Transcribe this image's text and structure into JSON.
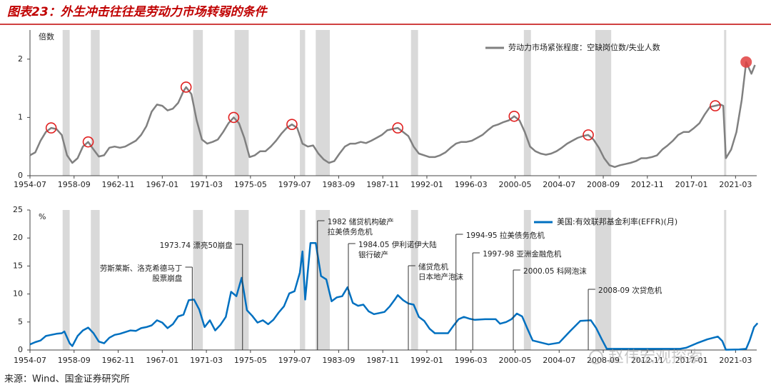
{
  "header": {
    "title": "图表23：外生冲击往往是劳动力市场转弱的条件"
  },
  "source": "来源：Wind、国金证券研究所",
  "watermark": "赵伟宏观探索",
  "recessions": [
    [
      "1957-08",
      "1958-04"
    ],
    [
      "1960-04",
      "1961-02"
    ],
    [
      "1969-12",
      "1970-11"
    ],
    [
      "1973-11",
      "1975-03"
    ],
    [
      "1980-01",
      "1980-07"
    ],
    [
      "1981-07",
      "1982-11"
    ],
    [
      "1990-07",
      "1991-03"
    ],
    [
      "2001-03",
      "2001-11"
    ],
    [
      "2007-12",
      "2009-06"
    ],
    [
      "2020-02",
      "2020-04"
    ]
  ],
  "chart_data": [
    {
      "type": "line",
      "y_label": "倍数",
      "xlim": [
        "1954-07",
        "2023-03"
      ],
      "xticks": [
        "1954-07",
        "1958-09",
        "1962-11",
        "1967-01",
        "1971-03",
        "1975-05",
        "1979-07",
        "1983-09",
        "1987-11",
        "1992-01",
        "1996-03",
        "2000-05",
        "2004-07",
        "2008-09",
        "2012-11",
        "2017-01",
        "2021-03"
      ],
      "ylim": [
        0,
        2.5
      ],
      "yticks": [
        0,
        1,
        2
      ],
      "grid": false,
      "legend": "top-right",
      "series": [
        {
          "name": "劳动力市场紧张程度：空缺岗位数/失业人数",
          "color": "#808080",
          "x": [
            "1954-07",
            "1955-01",
            "1955-07",
            "1956-01",
            "1956-07",
            "1957-01",
            "1957-07",
            "1958-01",
            "1958-07",
            "1959-01",
            "1959-07",
            "1960-01",
            "1960-07",
            "1961-01",
            "1961-07",
            "1962-01",
            "1962-07",
            "1963-01",
            "1963-07",
            "1964-01",
            "1964-07",
            "1965-01",
            "1965-07",
            "1966-01",
            "1966-07",
            "1967-01",
            "1967-07",
            "1968-01",
            "1968-07",
            "1969-01",
            "1969-04",
            "1969-10",
            "1970-04",
            "1970-10",
            "1971-04",
            "1971-10",
            "1972-04",
            "1972-10",
            "1973-04",
            "1973-10",
            "1974-04",
            "1974-10",
            "1975-04",
            "1975-10",
            "1976-04",
            "1976-10",
            "1977-04",
            "1977-10",
            "1978-04",
            "1978-10",
            "1979-04",
            "1979-10",
            "1980-04",
            "1980-10",
            "1981-04",
            "1981-10",
            "1982-04",
            "1982-10",
            "1983-04",
            "1983-10",
            "1984-04",
            "1984-10",
            "1985-04",
            "1985-10",
            "1986-04",
            "1986-10",
            "1987-04",
            "1987-10",
            "1988-04",
            "1988-10",
            "1989-04",
            "1989-10",
            "1990-04",
            "1990-10",
            "1991-04",
            "1991-10",
            "1992-04",
            "1992-10",
            "1993-04",
            "1993-10",
            "1994-04",
            "1994-10",
            "1995-04",
            "1995-10",
            "1996-04",
            "1996-10",
            "1997-04",
            "1997-10",
            "1998-04",
            "1998-10",
            "1999-04",
            "1999-10",
            "2000-04",
            "2000-10",
            "2001-04",
            "2001-10",
            "2002-04",
            "2002-10",
            "2003-04",
            "2003-10",
            "2004-04",
            "2004-10",
            "2005-04",
            "2005-10",
            "2006-04",
            "2006-10",
            "2007-04",
            "2007-10",
            "2008-04",
            "2008-10",
            "2009-04",
            "2009-10",
            "2010-04",
            "2010-10",
            "2011-04",
            "2011-10",
            "2012-04",
            "2012-10",
            "2013-04",
            "2013-10",
            "2014-04",
            "2014-10",
            "2015-04",
            "2015-10",
            "2016-04",
            "2016-10",
            "2017-04",
            "2017-10",
            "2018-04",
            "2018-10",
            "2019-04",
            "2019-10",
            "2020-01",
            "2020-04",
            "2020-10",
            "2021-04",
            "2021-10",
            "2022-03",
            "2022-09",
            "2023-01"
          ],
          "values": [
            0.35,
            0.4,
            0.6,
            0.75,
            0.82,
            0.8,
            0.7,
            0.35,
            0.22,
            0.3,
            0.5,
            0.58,
            0.45,
            0.33,
            0.35,
            0.48,
            0.5,
            0.48,
            0.5,
            0.55,
            0.6,
            0.7,
            0.85,
            1.1,
            1.22,
            1.2,
            1.12,
            1.15,
            1.25,
            1.45,
            1.52,
            1.4,
            0.95,
            0.62,
            0.55,
            0.58,
            0.62,
            0.75,
            0.9,
            1.0,
            0.9,
            0.65,
            0.32,
            0.35,
            0.42,
            0.42,
            0.5,
            0.6,
            0.72,
            0.82,
            0.88,
            0.82,
            0.55,
            0.5,
            0.52,
            0.38,
            0.28,
            0.22,
            0.25,
            0.38,
            0.5,
            0.55,
            0.55,
            0.58,
            0.56,
            0.6,
            0.65,
            0.7,
            0.78,
            0.8,
            0.82,
            0.75,
            0.68,
            0.5,
            0.38,
            0.35,
            0.32,
            0.32,
            0.35,
            0.4,
            0.48,
            0.55,
            0.58,
            0.58,
            0.6,
            0.65,
            0.7,
            0.78,
            0.85,
            0.88,
            0.92,
            0.95,
            1.02,
            0.95,
            0.75,
            0.5,
            0.42,
            0.38,
            0.36,
            0.38,
            0.42,
            0.48,
            0.55,
            0.6,
            0.65,
            0.68,
            0.7,
            0.62,
            0.48,
            0.3,
            0.18,
            0.15,
            0.18,
            0.2,
            0.22,
            0.25,
            0.3,
            0.3,
            0.32,
            0.35,
            0.45,
            0.52,
            0.6,
            0.7,
            0.75,
            0.75,
            0.82,
            0.9,
            1.05,
            1.18,
            1.2,
            1.22,
            1.2,
            0.3,
            0.45,
            0.75,
            1.3,
            1.95,
            1.75,
            1.9
          ]
        }
      ],
      "highlights": {
        "color": "#e02020",
        "x": [
          "1956-07",
          "1960-01",
          "1969-04",
          "1973-10",
          "1979-04",
          "1989-04",
          "2000-04",
          "2007-04",
          "2019-04"
        ],
        "values": [
          0.82,
          0.58,
          1.52,
          1.0,
          0.88,
          0.82,
          1.02,
          0.7,
          1.2
        ]
      },
      "latest": {
        "color": "#e04040",
        "x": "2022-03",
        "value": 1.95
      }
    },
    {
      "type": "line",
      "y_label": "%",
      "xlim": [
        "1954-07",
        "2023-03"
      ],
      "xticks": [
        "1954-07",
        "1958-09",
        "1962-11",
        "1967-01",
        "1971-03",
        "1975-05",
        "1979-07",
        "1983-09",
        "1987-11",
        "1992-01",
        "1996-03",
        "2000-05",
        "2004-07",
        "2008-09",
        "2012-11",
        "2017-01",
        "2021-03"
      ],
      "ylim": [
        0,
        25
      ],
      "yticks": [
        0,
        5,
        10,
        15,
        20,
        25
      ],
      "grid": false,
      "legend": "top-right",
      "series": [
        {
          "name": "美国:有效联邦基金利率(EFFR)(月)",
          "color": "#0070c0",
          "x": [
            "1954-07",
            "1955-01",
            "1955-07",
            "1956-01",
            "1956-07",
            "1957-01",
            "1957-07",
            "1957-10",
            "1958-04",
            "1958-07",
            "1959-01",
            "1959-07",
            "1960-01",
            "1960-07",
            "1961-01",
            "1961-07",
            "1962-01",
            "1962-07",
            "1963-01",
            "1963-07",
            "1964-01",
            "1964-07",
            "1965-01",
            "1965-07",
            "1966-01",
            "1966-07",
            "1967-01",
            "1967-07",
            "1968-01",
            "1968-07",
            "1969-01",
            "1969-07",
            "1970-01",
            "1970-07",
            "1971-01",
            "1971-07",
            "1972-01",
            "1972-07",
            "1973-01",
            "1973-07",
            "1974-01",
            "1974-07",
            "1975-01",
            "1975-07",
            "1976-01",
            "1976-07",
            "1977-01",
            "1977-07",
            "1978-01",
            "1978-07",
            "1979-01",
            "1979-07",
            "1980-01",
            "1980-04",
            "1980-07",
            "1981-01",
            "1981-07",
            "1982-01",
            "1982-07",
            "1983-01",
            "1983-07",
            "1984-01",
            "1984-07",
            "1985-01",
            "1985-07",
            "1986-01",
            "1986-07",
            "1987-01",
            "1987-07",
            "1988-01",
            "1988-07",
            "1989-01",
            "1989-04",
            "1989-10",
            "1990-04",
            "1990-10",
            "1991-04",
            "1991-10",
            "1992-04",
            "1992-10",
            "1993-07",
            "1994-01",
            "1994-07",
            "1995-01",
            "1995-07",
            "1996-01",
            "1996-07",
            "1997-07",
            "1998-07",
            "1998-12",
            "1999-07",
            "2000-01",
            "2000-07",
            "2001-01",
            "2001-07",
            "2002-01",
            "2003-07",
            "2004-07",
            "2005-07",
            "2006-07",
            "2007-07",
            "2008-01",
            "2008-07",
            "2009-01",
            "2010-07",
            "2015-12",
            "2016-07",
            "2017-07",
            "2018-07",
            "2019-07",
            "2019-12",
            "2020-04",
            "2021-07",
            "2022-03",
            "2022-07",
            "2022-12",
            "2023-04"
          ],
          "values": [
            1.0,
            1.4,
            1.7,
            2.5,
            2.7,
            2.9,
            3.0,
            3.3,
            1.2,
            0.7,
            2.5,
            3.5,
            4.0,
            3.0,
            1.5,
            1.2,
            2.2,
            2.7,
            2.9,
            3.2,
            3.5,
            3.4,
            3.9,
            4.1,
            4.4,
            5.3,
            4.9,
            3.9,
            4.6,
            6.0,
            6.3,
            8.9,
            9.0,
            7.2,
            4.1,
            5.3,
            3.5,
            4.5,
            5.9,
            10.4,
            9.6,
            12.9,
            7.1,
            6.1,
            4.9,
            5.3,
            4.6,
            5.4,
            6.7,
            7.8,
            10.1,
            10.5,
            13.8,
            17.6,
            9.0,
            19.1,
            19.1,
            13.2,
            12.6,
            8.7,
            9.4,
            9.6,
            11.2,
            8.4,
            7.9,
            8.1,
            6.9,
            6.4,
            6.6,
            6.8,
            7.8,
            9.1,
            9.8,
            8.9,
            8.3,
            8.1,
            5.9,
            5.2,
            3.8,
            3.0,
            3.0,
            3.0,
            4.3,
            5.5,
            5.9,
            5.6,
            5.4,
            5.5,
            5.5,
            4.7,
            5.0,
            5.5,
            6.5,
            6.0,
            3.8,
            1.7,
            1.0,
            1.3,
            3.3,
            5.2,
            5.3,
            3.9,
            2.0,
            0.2,
            0.2,
            0.2,
            0.4,
            1.2,
            1.9,
            2.4,
            1.6,
            0.05,
            0.1,
            0.2,
            1.7,
            4.1,
            4.8
          ]
        }
      ],
      "annotations": [
        {
          "x": "1969-11",
          "lines": [
            {
              "text": "劳斯莱斯、洛克希德马丁",
              "color": "#c00000"
            },
            {
              "text": "股票崩盘",
              "color": "#c00000"
            }
          ]
        },
        {
          "x": "1974-08",
          "lines": [
            {
              "text": "1973.74 漂亮50崩盘",
              "color": "#c00000"
            }
          ]
        },
        {
          "x": "1981-09",
          "lines": [
            {
              "text": "1982 储贷机构破产",
              "color": "#c00000"
            },
            {
              "text": "拉美债务危机",
              "color": "#2e75b6"
            }
          ]
        },
        {
          "x": "1984-08",
          "lines": [
            {
              "text": "1984.05 伊利诺伊大陆",
              "color": "#c00000"
            },
            {
              "text": "银行破产",
              "color": "#c00000"
            }
          ]
        },
        {
          "x": "1990-04",
          "lines": [
            {
              "text": "储贷危机",
              "color": "#c00000"
            },
            {
              "text": "日本地产泡沫",
              "color": "#2e75b6"
            }
          ]
        },
        {
          "x": "1994-10",
          "lines": [
            {
              "text": "1994-95 拉美债务危机",
              "color": "#2e75b6"
            }
          ]
        },
        {
          "x": "1996-05",
          "lines": [
            {
              "text": "1997-98 亚洲金融危机",
              "color": "#2e75b6"
            }
          ]
        },
        {
          "x": "2000-03",
          "lines": [
            {
              "text": "2000.05 科网泡沫",
              "color": "#c00000"
            }
          ]
        },
        {
          "x": "2007-04",
          "lines": [
            {
              "text": "2008-09 次贷危机",
              "color": "#c00000"
            }
          ]
        }
      ]
    }
  ]
}
